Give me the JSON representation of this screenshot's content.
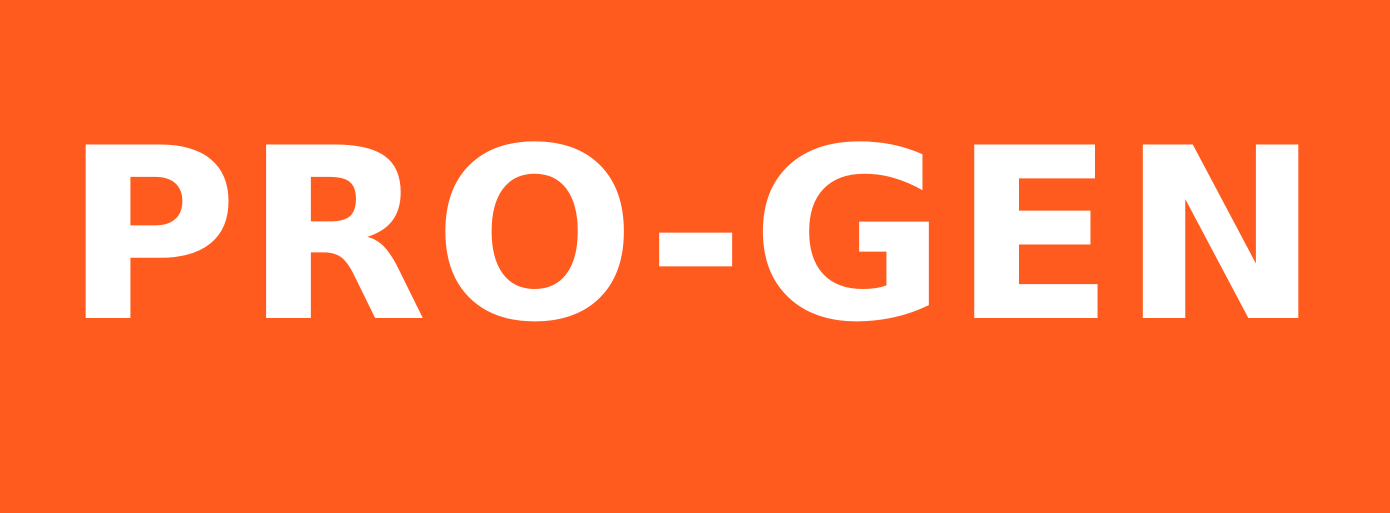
{
  "banner": {
    "text": "PRO-GEN",
    "background_color": "#FF5B1F",
    "text_color": "#FFFFFF"
  }
}
